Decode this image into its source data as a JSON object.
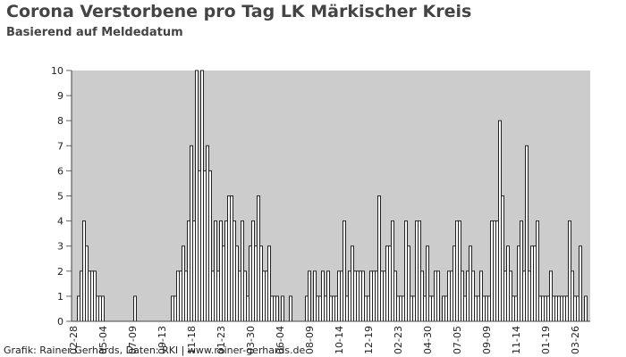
{
  "chart_data": {
    "type": "bar",
    "title": "Corona Verstorbene pro Tag LK Märkischer Kreis",
    "subtitle": "Basierend auf Meldedatum",
    "footer": "Grafik: Rainer Gerhards, Daten: RKI | www.rainer-gerhards.de",
    "categories": [
      "02-28",
      null,
      null,
      null,
      null,
      null,
      null,
      null,
      null,
      null,
      null,
      "05-04",
      null,
      null,
      null,
      null,
      null,
      null,
      null,
      null,
      null,
      null,
      "07-09",
      null,
      null,
      null,
      null,
      null,
      null,
      null,
      null,
      null,
      null,
      "09-13",
      null,
      null,
      null,
      null,
      null,
      null,
      null,
      null,
      null,
      null,
      "11-18",
      null,
      null,
      null,
      null,
      null,
      null,
      null,
      null,
      null,
      null,
      "01-23",
      null,
      null,
      null,
      null,
      null,
      null,
      null,
      null,
      null,
      null,
      "03-30",
      null,
      null,
      null,
      null,
      null,
      null,
      null,
      null,
      null,
      null,
      "06-04",
      null,
      null,
      null,
      null,
      null,
      null,
      null,
      null,
      null,
      null,
      "08-09",
      null,
      null,
      null,
      null,
      null,
      null,
      null,
      null,
      null,
      null,
      "10-14",
      null,
      null,
      null,
      null,
      null,
      null,
      null,
      null,
      null,
      null,
      "12-19",
      null,
      null,
      null,
      null,
      null,
      null,
      null,
      null,
      null,
      null,
      "02-23",
      null,
      null,
      null,
      null,
      null,
      null,
      null,
      null,
      null,
      null,
      "04-30",
      null,
      null,
      null,
      null,
      null,
      null,
      null,
      null,
      null,
      null,
      "07-05",
      null,
      null,
      null,
      null,
      null,
      null,
      null,
      null,
      null,
      null,
      "09-09",
      null,
      null,
      null,
      null,
      null,
      null,
      null,
      null,
      null,
      null,
      "11-14",
      null,
      null,
      null,
      null,
      null,
      null,
      null,
      null,
      null,
      null,
      "01-19",
      null,
      null,
      null,
      null,
      null,
      null,
      null,
      null,
      null,
      null,
      "03-26",
      null,
      null,
      null,
      null,
      null
    ],
    "values": [
      0,
      0,
      1,
      2,
      4,
      3,
      2,
      2,
      2,
      1,
      1,
      1,
      0,
      0,
      0,
      0,
      0,
      0,
      0,
      0,
      0,
      0,
      0,
      1,
      0,
      0,
      0,
      0,
      0,
      0,
      0,
      0,
      0,
      0,
      0,
      0,
      0,
      1,
      1,
      2,
      2,
      3,
      2,
      4,
      7,
      4,
      10,
      6,
      10,
      6,
      7,
      6,
      2,
      4,
      2,
      4,
      3,
      4,
      5,
      5,
      4,
      3,
      2,
      4,
      2,
      1,
      3,
      4,
      3,
      5,
      3,
      2,
      2,
      3,
      1,
      1,
      1,
      0,
      1,
      0,
      0,
      1,
      0,
      0,
      0,
      0,
      0,
      1,
      2,
      0,
      2,
      1,
      1,
      2,
      1,
      2,
      1,
      1,
      1,
      2,
      2,
      4,
      1,
      2,
      3,
      2,
      2,
      2,
      2,
      1,
      1,
      2,
      2,
      2,
      5,
      2,
      2,
      3,
      3,
      4,
      2,
      1,
      1,
      1,
      4,
      3,
      1,
      1,
      4,
      4,
      2,
      1,
      3,
      1,
      1,
      2,
      2,
      0,
      1,
      1,
      2,
      2,
      3,
      4,
      4,
      2,
      1,
      2,
      3,
      2,
      1,
      1,
      2,
      1,
      1,
      1,
      4,
      4,
      4,
      8,
      5,
      2,
      3,
      2,
      1,
      1,
      3,
      4,
      2,
      7,
      2,
      3,
      3,
      4,
      1,
      1,
      1,
      1,
      2,
      1,
      1,
      1,
      1,
      1,
      1,
      4,
      2,
      1,
      1,
      3,
      0,
      1,
      0
    ],
    "color": "#ffffff",
    "ylim": [
      0,
      10
    ],
    "yticks": [
      0,
      1,
      2,
      3,
      4,
      5,
      6,
      7,
      8,
      9,
      10
    ],
    "grid": false
  }
}
